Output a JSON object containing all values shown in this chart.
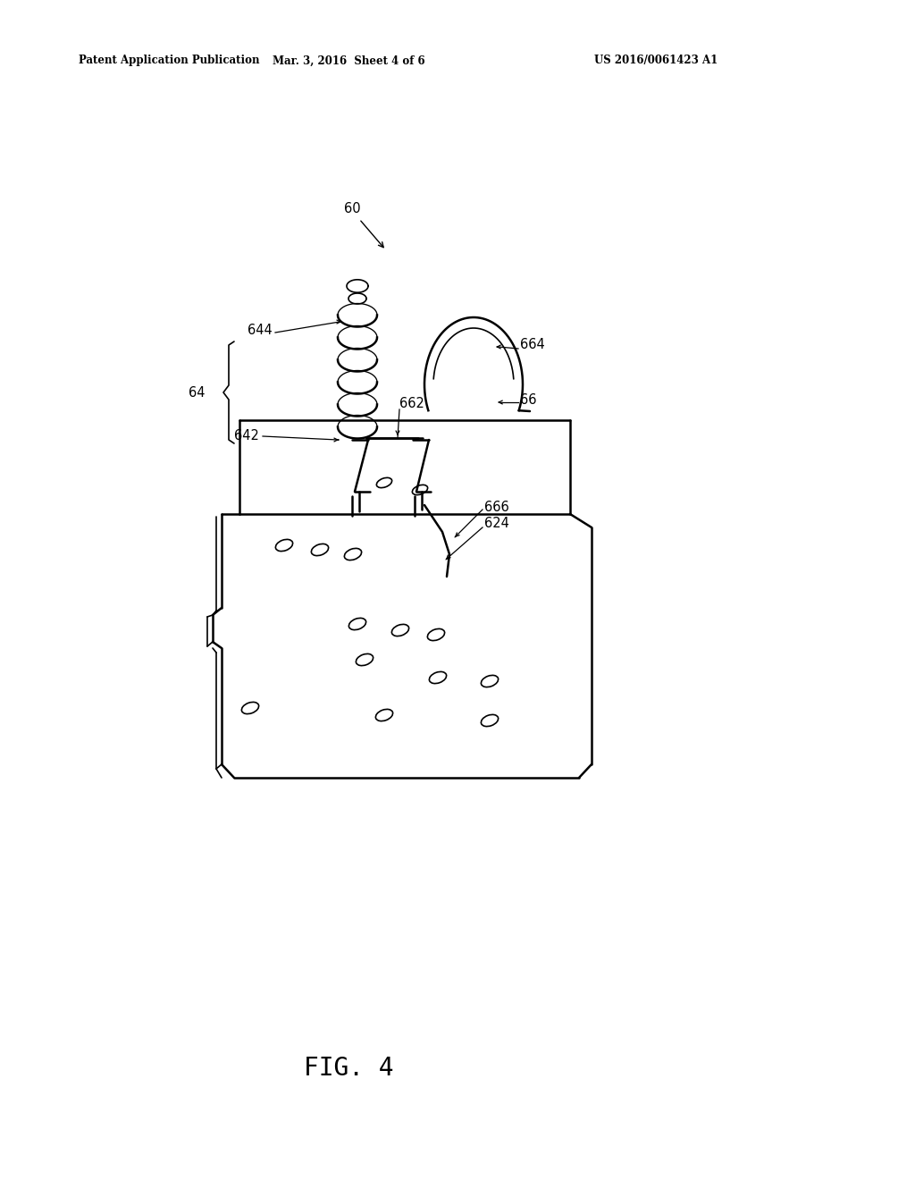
{
  "bg_color": "#ffffff",
  "header_left": "Patent Application Publication",
  "header_mid": "Mar. 3, 2016  Sheet 4 of 6",
  "header_right": "US 2016/0061423 A1",
  "fig_label": "FIG. 4"
}
